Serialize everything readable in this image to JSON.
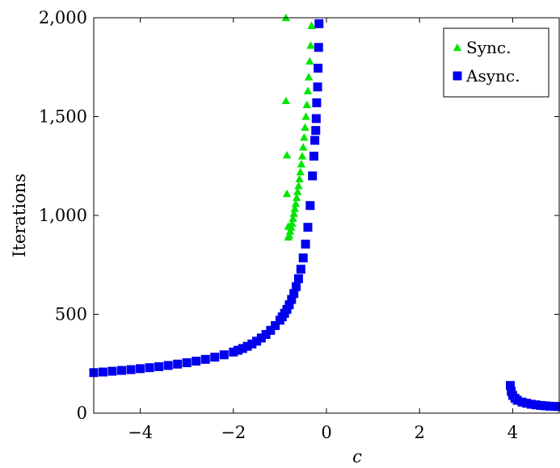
{
  "chart_data": {
    "type": "scatter",
    "title": "",
    "xlabel": "c",
    "ylabel": "Iterations",
    "xlim": [
      -5,
      5
    ],
    "ylim": [
      0,
      2000
    ],
    "xticks": [
      -4,
      -2,
      0,
      2,
      4
    ],
    "xtick_labels": [
      "−4",
      "−2",
      "0",
      "2",
      "4"
    ],
    "yticks": [
      0,
      500,
      1000,
      1500,
      2000
    ],
    "ytick_labels": [
      "0",
      "500",
      "1,000",
      "1,500",
      "2,000"
    ],
    "grid": false,
    "legend_position": "top-right",
    "series": [
      {
        "name": "Sync.",
        "marker": "triangle",
        "color": "#00e600",
        "points": [
          [
            -0.87,
            2000
          ],
          [
            -0.87,
            1580
          ],
          [
            -0.85,
            1305
          ],
          [
            -0.85,
            1110
          ],
          [
            -0.82,
            945
          ],
          [
            -0.82,
            890
          ],
          [
            -0.8,
            900
          ],
          [
            -0.78,
            920
          ],
          [
            -0.76,
            940
          ],
          [
            -0.74,
            960
          ],
          [
            -0.72,
            985
          ],
          [
            -0.7,
            1010
          ],
          [
            -0.68,
            1035
          ],
          [
            -0.66,
            1060
          ],
          [
            -0.64,
            1090
          ],
          [
            -0.62,
            1120
          ],
          [
            -0.6,
            1150
          ],
          [
            -0.58,
            1185
          ],
          [
            -0.56,
            1220
          ],
          [
            -0.54,
            1260
          ],
          [
            -0.52,
            1300
          ],
          [
            -0.5,
            1345
          ],
          [
            -0.48,
            1395
          ],
          [
            -0.46,
            1445
          ],
          [
            -0.44,
            1500
          ],
          [
            -0.42,
            1560
          ],
          [
            -0.4,
            1630
          ],
          [
            -0.38,
            1700
          ],
          [
            -0.36,
            1780
          ],
          [
            -0.34,
            1860
          ],
          [
            -0.32,
            1960
          ]
        ]
      },
      {
        "name": "Async.",
        "marker": "square",
        "color": "#0000ee",
        "points": [
          [
            -5.0,
            205
          ],
          [
            -4.8,
            208
          ],
          [
            -4.6,
            212
          ],
          [
            -4.4,
            216
          ],
          [
            -4.2,
            220
          ],
          [
            -4.0,
            225
          ],
          [
            -3.8,
            230
          ],
          [
            -3.6,
            235
          ],
          [
            -3.4,
            241
          ],
          [
            -3.2,
            248
          ],
          [
            -3.0,
            255
          ],
          [
            -2.8,
            263
          ],
          [
            -2.6,
            272
          ],
          [
            -2.4,
            283
          ],
          [
            -2.2,
            295
          ],
          [
            -2.0,
            309
          ],
          [
            -1.9,
            318
          ],
          [
            -1.8,
            327
          ],
          [
            -1.7,
            338
          ],
          [
            -1.6,
            350
          ],
          [
            -1.5,
            364
          ],
          [
            -1.4,
            380
          ],
          [
            -1.3,
            398
          ],
          [
            -1.2,
            419
          ],
          [
            -1.1,
            443
          ],
          [
            -1.0,
            470
          ],
          [
            -0.95,
            487
          ],
          [
            -0.9,
            505
          ],
          [
            -0.85,
            525
          ],
          [
            -0.8,
            548
          ],
          [
            -0.75,
            575
          ],
          [
            -0.7,
            605
          ],
          [
            -0.65,
            640
          ],
          [
            -0.6,
            680
          ],
          [
            -0.55,
            728
          ],
          [
            -0.5,
            785
          ],
          [
            -0.45,
            855
          ],
          [
            -0.4,
            940
          ],
          [
            -0.35,
            1050
          ],
          [
            -0.3,
            1200
          ],
          [
            -0.27,
            1300
          ],
          [
            -0.25,
            1380
          ],
          [
            -0.23,
            1430
          ],
          [
            -0.22,
            1490
          ],
          [
            -0.21,
            1570
          ],
          [
            -0.19,
            1650
          ],
          [
            -0.18,
            1745
          ],
          [
            -0.17,
            1850
          ],
          [
            -0.16,
            1970
          ],
          [
            3.95,
            140
          ],
          [
            3.97,
            110
          ],
          [
            4.0,
            90
          ],
          [
            4.05,
            75
          ],
          [
            4.1,
            65
          ],
          [
            4.2,
            56
          ],
          [
            4.3,
            50
          ],
          [
            4.4,
            45
          ],
          [
            4.5,
            42
          ],
          [
            4.6,
            39
          ],
          [
            4.7,
            37
          ],
          [
            4.8,
            35
          ],
          [
            4.9,
            34
          ],
          [
            5.0,
            33
          ]
        ]
      }
    ]
  }
}
